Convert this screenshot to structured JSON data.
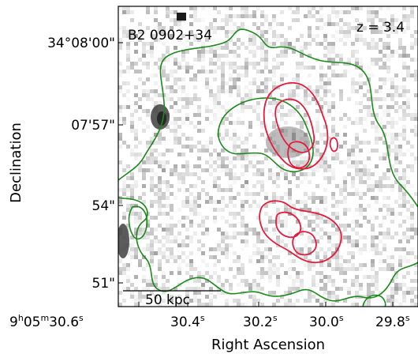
{
  "figure": {
    "source_name": "B2 0902+34",
    "redshift_label": "z = 3.4",
    "scale_bar_label": "50 kpc",
    "x_axis_label": "Right Ascension",
    "y_axis_label": "Declination",
    "ra_ticks": [
      "30.6s",
      "30.4s",
      "30.2s",
      "30.0s",
      "29.8s"
    ],
    "ra_prefix": "9h05m",
    "dec_ticks": [
      "34°08'00\"",
      "07'57\"",
      "54\"",
      "51\""
    ],
    "colors": {
      "green_contour": "#1a8a1a",
      "red_contour": "#e8193c",
      "background_noise": "#808080"
    }
  }
}
